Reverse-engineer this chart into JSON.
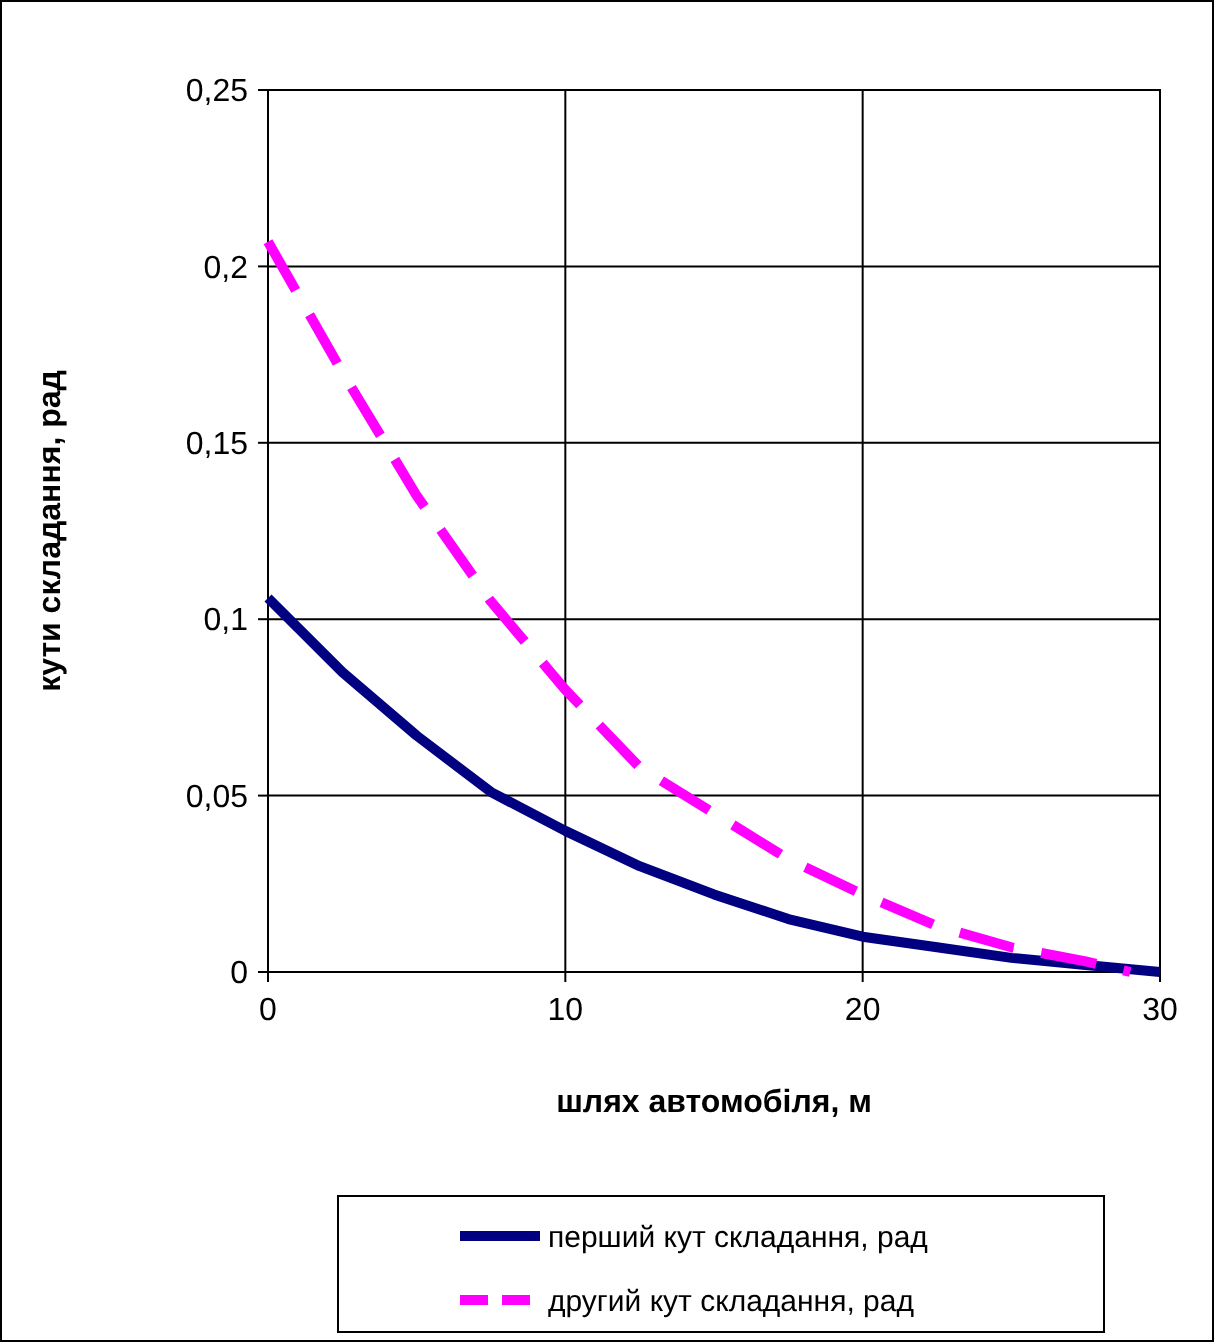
{
  "chart_data": {
    "type": "line",
    "xlabel": "шлях автомобіля, м",
    "ylabel": "кути складання, рад",
    "xlim": [
      0,
      30
    ],
    "xticks": [
      0,
      10,
      20,
      30
    ],
    "ylim": [
      0,
      0.25
    ],
    "yticks": [
      0,
      {
        "value": 0.05,
        "label": "0,05"
      },
      {
        "value": 0.1,
        "label": "0,1"
      },
      {
        "value": 0.15,
        "label": "0,15"
      },
      {
        "value": 0.2,
        "label": "0,2"
      },
      {
        "value": 0.25,
        "label": "0,25"
      }
    ],
    "grid": true,
    "legend": "bottom",
    "series": [
      {
        "name": "перший кут складання, рад",
        "color": "#000080",
        "line_style": "solid",
        "x": [
          0,
          2.5,
          5,
          7.5,
          10,
          12.5,
          15,
          17.5,
          20,
          22.5,
          25,
          27.5,
          30
        ],
        "values": [
          0.106,
          0.085,
          0.067,
          0.051,
          0.04,
          0.03,
          0.022,
          0.015,
          0.01,
          0.007,
          0.004,
          0.002,
          0
        ]
      },
      {
        "name": "другий кут складання, рад",
        "color": "#ff00ff",
        "line_style": "dashed",
        "x": [
          0,
          2.5,
          5,
          7.5,
          10,
          12.5,
          15,
          17.5,
          20,
          22.5,
          25,
          27.5,
          29
        ],
        "values": [
          0.207,
          0.17,
          0.135,
          0.105,
          0.08,
          0.058,
          0.045,
          0.032,
          0.022,
          0.013,
          0.007,
          0.003,
          0
        ]
      }
    ]
  }
}
